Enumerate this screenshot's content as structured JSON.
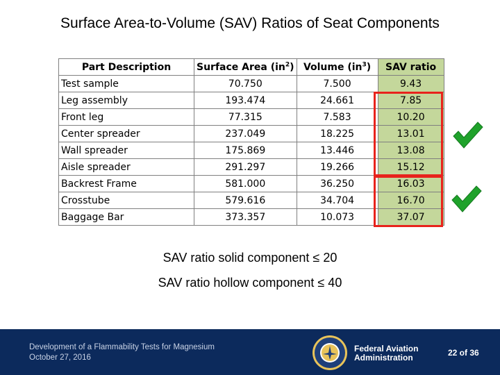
{
  "slide": {
    "title": "Surface Area-to-Volume (SAV) Ratios of Seat Components"
  },
  "table": {
    "headers": {
      "part": "Part Description",
      "surface_area": "Surface Area (in",
      "surface_area_exp": "2",
      "volume": "Volume (in",
      "volume_exp": "3",
      "sav": "SAV ratio",
      "close_paren": ")"
    },
    "rows": [
      {
        "part": "Test sample",
        "surface_area": "70.750",
        "volume": "7.500",
        "sav": "9.43"
      },
      {
        "part": "Leg assembly",
        "surface_area": "193.474",
        "volume": "24.661",
        "sav": "7.85"
      },
      {
        "part": "Front leg",
        "surface_area": "77.315",
        "volume": "7.583",
        "sav": "10.20"
      },
      {
        "part": "Center spreader",
        "surface_area": "237.049",
        "volume": "18.225",
        "sav": "13.01"
      },
      {
        "part": "Wall spreader",
        "surface_area": "175.869",
        "volume": "13.446",
        "sav": "13.08"
      },
      {
        "part": "Aisle spreader",
        "surface_area": "291.297",
        "volume": "19.266",
        "sav": "15.12"
      },
      {
        "part": "Backrest Frame",
        "surface_area": "581.000",
        "volume": "36.250",
        "sav": "16.03"
      },
      {
        "part": "Crosstube",
        "surface_area": "579.616",
        "volume": "34.704",
        "sav": "16.70"
      },
      {
        "part": "Baggage Bar",
        "surface_area": "373.357",
        "volume": "10.073",
        "sav": "37.07"
      }
    ]
  },
  "notes": {
    "solid": "SAV ratio solid component ≤ 20",
    "hollow": "SAV ratio hollow component ≤ 40"
  },
  "footer": {
    "presentation": "Development of a Flammability Tests for Magnesium",
    "date": "October 27, 2016",
    "agency_line1": "Federal Aviation",
    "agency_line2": "Administration",
    "page": "22 of 36",
    "seal_text": "FEDERAL AVIATION ADMINISTRATION"
  },
  "colors": {
    "sav_column_fill": "#c4d79b",
    "highlight_box": "#e8231c",
    "check": "#1fa22b",
    "footer_bg": "#0c2a5c"
  },
  "icons": {
    "check": "checkmark-icon",
    "seal": "faa-seal-icon"
  }
}
